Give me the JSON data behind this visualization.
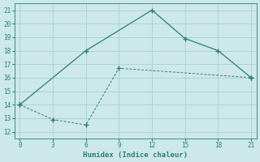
{
  "xlabel": "Humidex (Indice chaleur)",
  "line1_x": [
    0,
    6,
    12,
    15,
    18,
    21
  ],
  "line1_y": [
    14,
    18,
    21,
    18.9,
    18,
    16
  ],
  "line2_x": [
    0,
    3,
    6,
    9,
    21
  ],
  "line2_y": [
    14,
    12.9,
    12.5,
    16.7,
    16
  ],
  "line_color": "#2e7f6e",
  "bg_color": "#cce8e8",
  "grid_color": "#aacfcf",
  "xlim": [
    -0.5,
    21.5
  ],
  "ylim": [
    11.5,
    21.5
  ],
  "xticks": [
    0,
    3,
    6,
    9,
    12,
    15,
    18,
    21
  ],
  "yticks": [
    12,
    13,
    14,
    15,
    16,
    17,
    18,
    19,
    20,
    21
  ],
  "tick_fontsize": 5.5,
  "label_fontsize": 6.5
}
